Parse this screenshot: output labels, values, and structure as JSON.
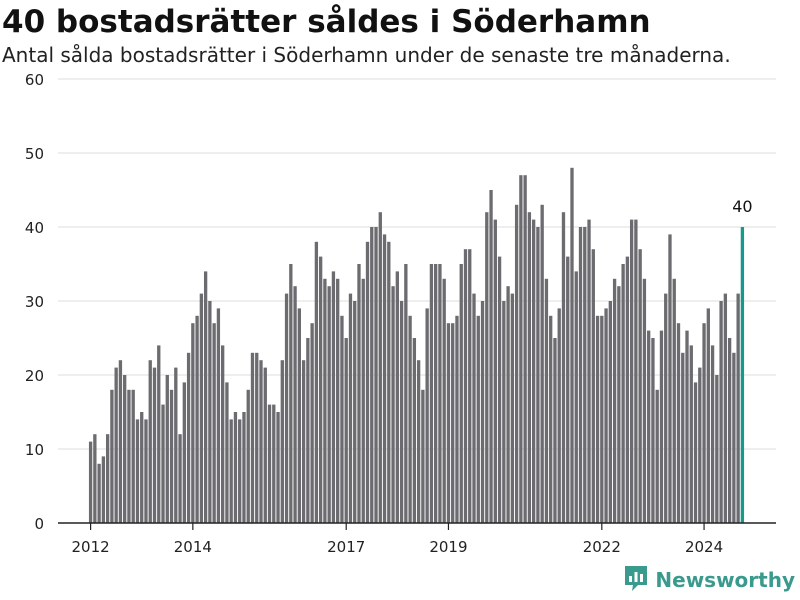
{
  "header": {
    "title": "40 bostadsrätter såldes i Söderhamn",
    "subtitle": "Antal sålda bostadsrätter i Söderhamn under de senaste tre månaderna."
  },
  "brand": {
    "name": "Newsworthy",
    "icon": "newsworthy-logo-icon",
    "color": "#3a9a8e"
  },
  "colors": {
    "bar": "#6c6b70",
    "highlight": "#17998c",
    "grid": "#dddddd"
  },
  "chart_data": {
    "type": "bar",
    "title": "40 bostadsrätter såldes i Söderhamn",
    "subtitle": "Antal sålda bostadsrätter i Söderhamn under de senaste tre månaderna.",
    "xlabel": "",
    "ylabel": "",
    "ylim": [
      0,
      60
    ],
    "yticks": [
      0,
      10,
      20,
      30,
      40,
      50,
      60
    ],
    "xticks": [
      "2012",
      "2014",
      "2017",
      "2019",
      "2022",
      "2024"
    ],
    "grid": true,
    "start_month": "2012-01",
    "frequency": "monthly",
    "values": [
      11,
      12,
      8,
      9,
      12,
      18,
      21,
      22,
      20,
      18,
      18,
      14,
      15,
      14,
      22,
      21,
      24,
      16,
      20,
      18,
      21,
      12,
      19,
      23,
      27,
      28,
      31,
      34,
      30,
      27,
      29,
      24,
      19,
      14,
      15,
      14,
      15,
      18,
      23,
      23,
      22,
      21,
      16,
      16,
      15,
      22,
      31,
      35,
      32,
      29,
      22,
      25,
      27,
      38,
      36,
      33,
      32,
      34,
      33,
      28,
      25,
      31,
      30,
      35,
      33,
      38,
      40,
      40,
      42,
      39,
      38,
      32,
      34,
      30,
      35,
      28,
      25,
      22,
      18,
      29,
      35,
      35,
      35,
      33,
      27,
      27,
      28,
      35,
      37,
      37,
      31,
      28,
      30,
      42,
      45,
      41,
      36,
      30,
      32,
      31,
      43,
      47,
      47,
      42,
      41,
      40,
      43,
      33,
      28,
      25,
      29,
      42,
      36,
      48,
      34,
      40,
      40,
      41,
      37,
      28,
      28,
      29,
      30,
      33,
      32,
      35,
      36,
      41,
      41,
      37,
      33,
      26,
      25,
      18,
      26,
      31,
      39,
      33,
      27,
      23,
      26,
      24,
      19,
      21,
      27,
      29,
      24,
      20,
      30,
      31,
      25,
      23,
      31,
      40
    ],
    "highlight_last": true,
    "annotation": "40"
  }
}
